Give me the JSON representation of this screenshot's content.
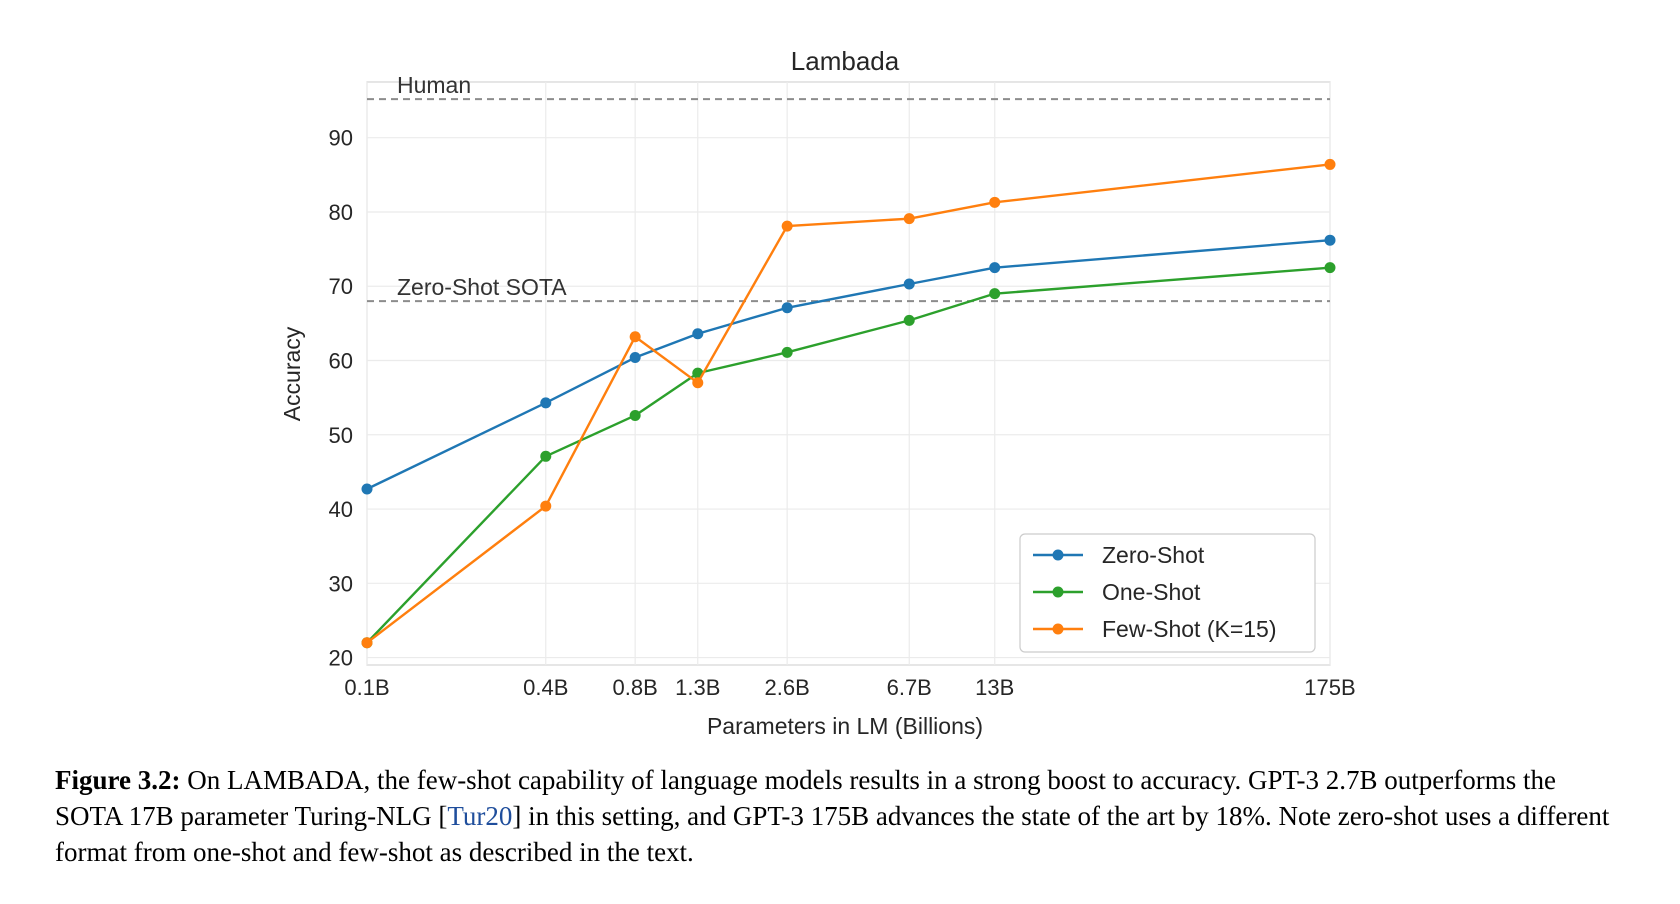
{
  "chart_data": {
    "type": "line",
    "title": "Lambada",
    "xlabel": "Parameters in LM (Billions)",
    "ylabel": "Accuracy",
    "categories": [
      "0.1B",
      "0.4B",
      "0.8B",
      "1.3B",
      "2.6B",
      "6.7B",
      "13B",
      "175B"
    ],
    "x": [
      0.1,
      0.4,
      0.8,
      1.3,
      2.6,
      6.7,
      13,
      175
    ],
    "x_scale": "log",
    "ylim": [
      19,
      97.5
    ],
    "yticks": [
      20,
      30,
      40,
      50,
      60,
      70,
      80,
      90
    ],
    "grid": true,
    "legend_position": "lower-right",
    "series": [
      {
        "name": "Zero-Shot",
        "color": "#1f77b4",
        "values": [
          42.7,
          54.3,
          60.4,
          63.6,
          67.1,
          70.3,
          72.5,
          76.2
        ]
      },
      {
        "name": "One-Shot",
        "color": "#2ca02c",
        "values": [
          22.0,
          47.1,
          52.6,
          58.3,
          61.1,
          65.4,
          69.0,
          72.5
        ]
      },
      {
        "name": "Few-Shot (K=15)",
        "color": "#ff7f0e",
        "values": [
          22.0,
          40.4,
          63.2,
          57.0,
          78.1,
          79.1,
          81.3,
          86.4
        ]
      }
    ],
    "reference_lines": [
      {
        "label": "Human",
        "value": 95.2
      },
      {
        "label": "Zero-Shot SOTA",
        "value": 68.0
      }
    ]
  },
  "caption": {
    "label": "Figure 3.2:",
    "text_before_link": " On LAMBADA, the few-shot capability of language models results in a strong boost to accuracy. GPT-3 2.7B outperforms the SOTA 17B parameter Turing-NLG [",
    "link": "Tur20",
    "text_after_link": "] in this setting, and GPT-3 175B advances the state of the art by 18%. Note zero-shot uses a different format from one-shot and few-shot as described in the text."
  }
}
